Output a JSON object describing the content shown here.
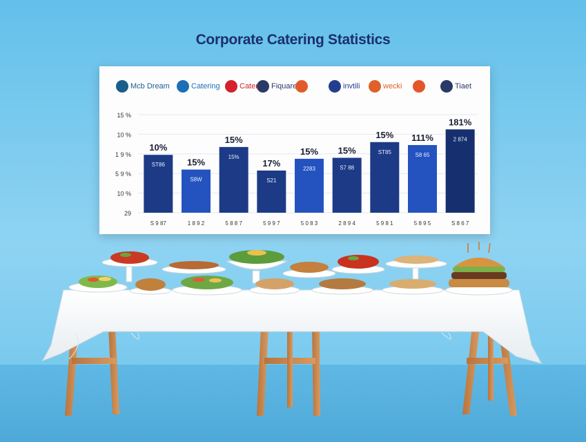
{
  "title": "Corporate Catering Statistics",
  "logos": [
    {
      "name": "Mcb Dream",
      "text": "Mcb Dream",
      "color": "#1a5f8a"
    },
    {
      "name": "Catering",
      "text": "Catering",
      "color": "#1c6fb5"
    },
    {
      "name": "Catering red",
      "text": "Catering",
      "color": "#d2222d"
    },
    {
      "name": "Fiquare",
      "text": "Fiquare",
      "color": "#2a3a66"
    },
    {
      "name": "swirl",
      "text": "",
      "color": "#e25a2a"
    },
    {
      "name": "invtili",
      "text": "invtili",
      "color": "#233e8e"
    },
    {
      "name": "weckci",
      "text": "wecki",
      "color": "#e0602a"
    },
    {
      "name": "s-mark",
      "text": "",
      "color": "#e4552a"
    },
    {
      "name": "Tiaet",
      "text": "Tiaet",
      "color": "#2a3a66"
    }
  ],
  "chart_data": {
    "type": "bar",
    "y_tick_labels": [
      "15 %",
      "10 %",
      "1 9 %",
      "5 9 %",
      "10 %",
      "29"
    ],
    "categories": [
      "S 9 87",
      "1 8 9 2",
      "5 8 8 7",
      "5 9 9 7",
      "5 0 8 3",
      "2 8 9 4",
      "5 9 8 1",
      "5 8 9 5",
      "S 8 6 7"
    ],
    "bar_top_labels": [
      "10%",
      "15%",
      "15%",
      "17%",
      "15%",
      "15%",
      "15%",
      "111%",
      "181%"
    ],
    "bar_inner_labels": [
      "ST86",
      "S8W",
      "15%",
      "S21",
      "2283",
      "S7 88",
      "ST85",
      "S8 65",
      "2 874"
    ],
    "values": [
      59,
      44,
      67,
      43,
      55,
      56,
      72,
      69,
      85
    ],
    "ylim": [
      0,
      100
    ],
    "colors": [
      "#1c3a86",
      "#2453c0",
      "#1c3a86",
      "#1c3a86",
      "#2453c0",
      "#1c3a86",
      "#1c3a86",
      "#2453c0",
      "#16306f"
    ],
    "grid": true
  },
  "colors": {
    "table_cloth": "#fbfbfb",
    "table_leg": "#c98a52"
  }
}
